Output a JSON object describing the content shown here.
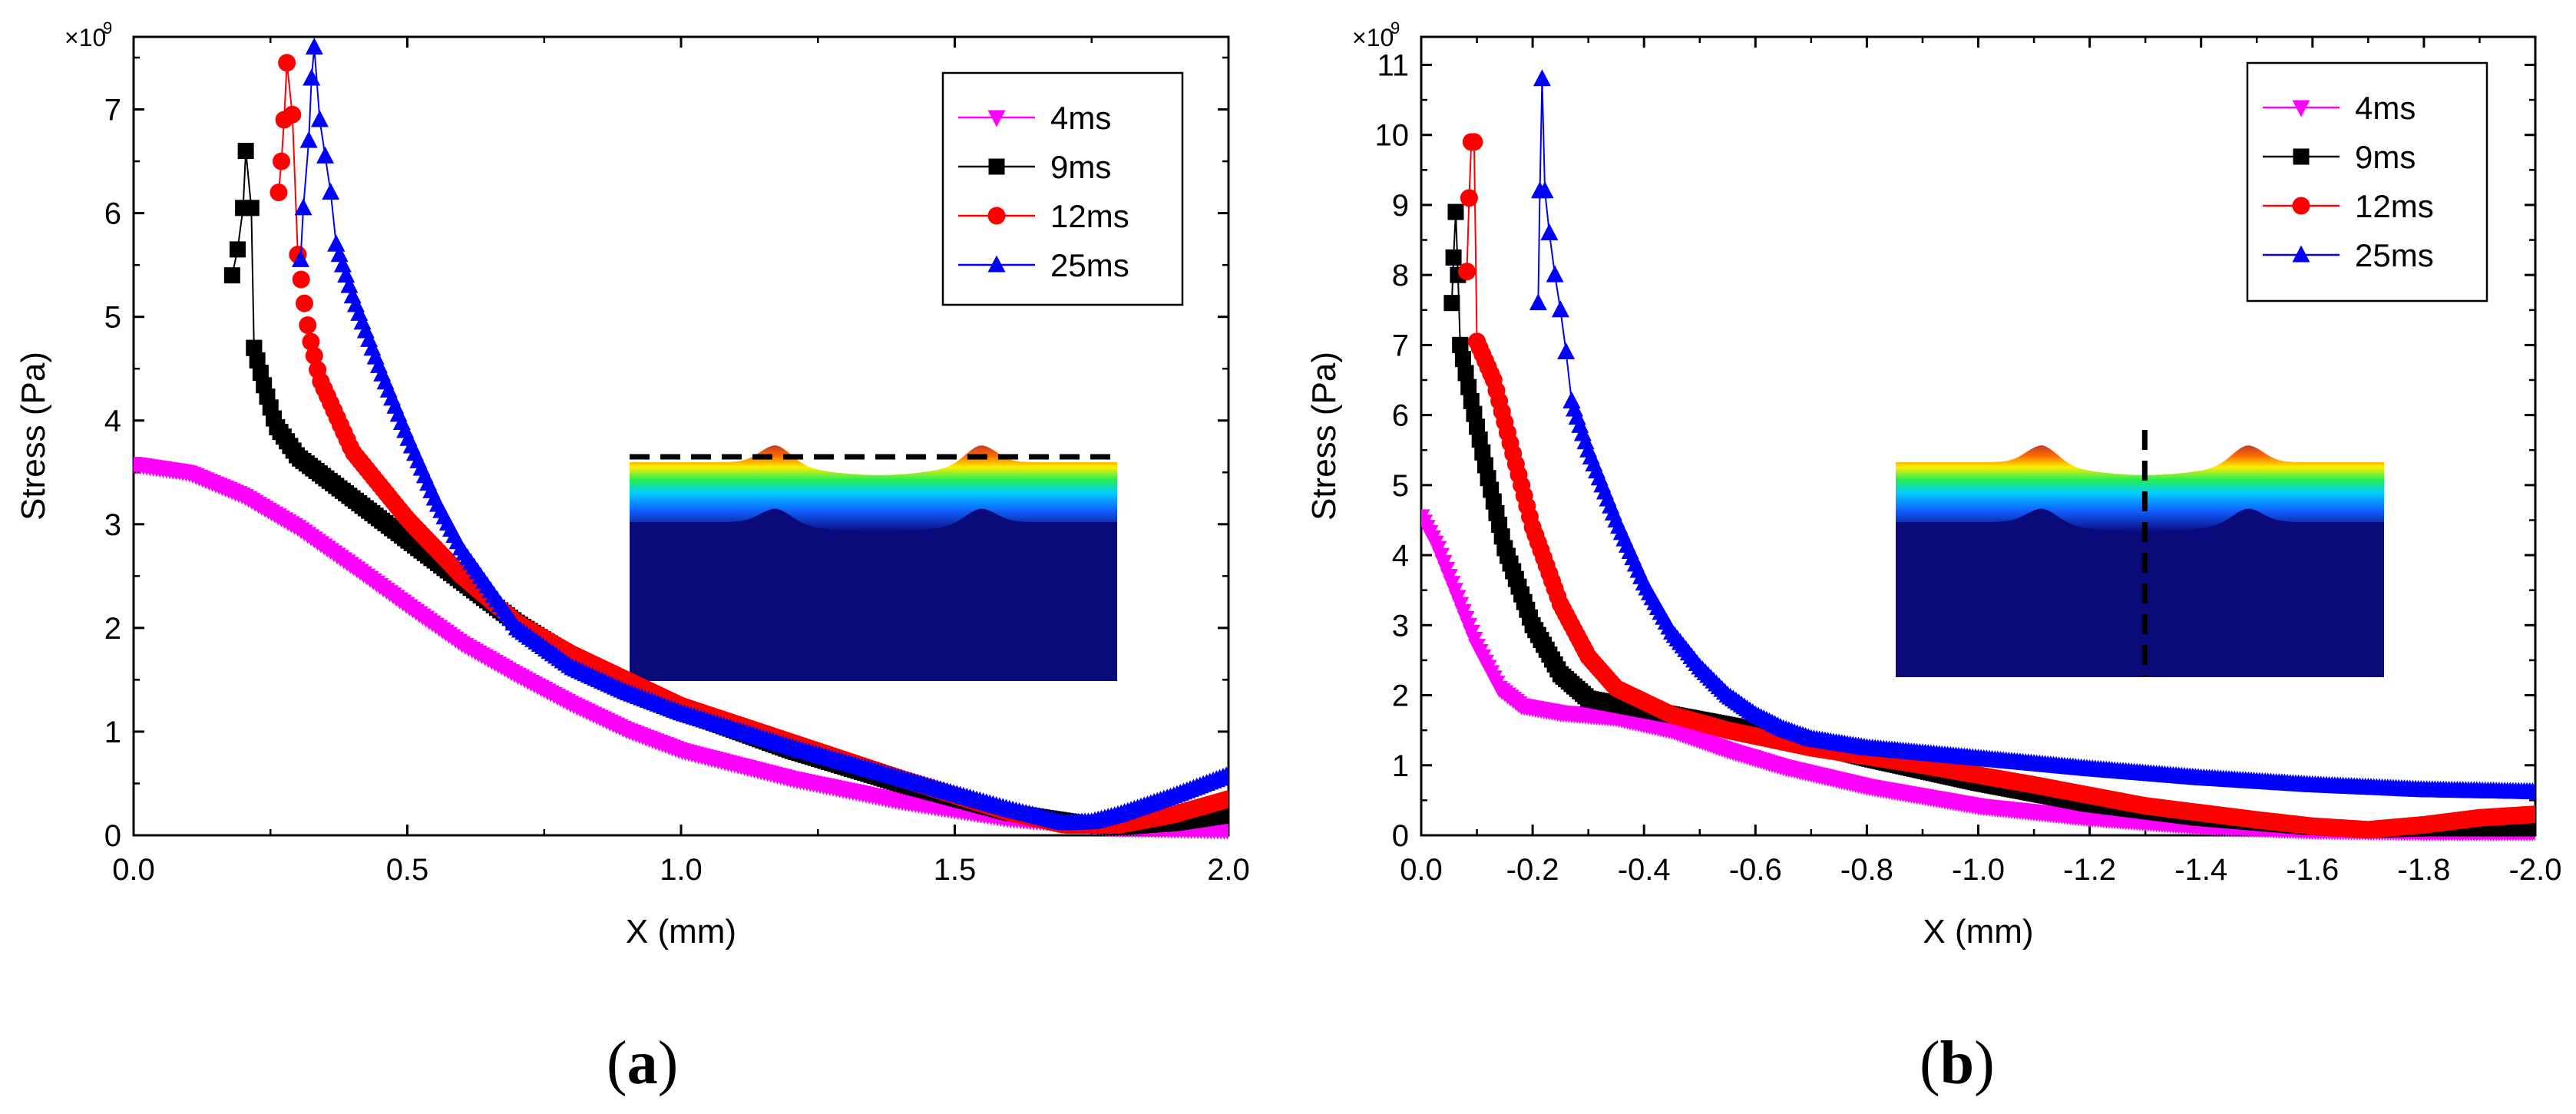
{
  "panel_labels": {
    "a_open": "(",
    "a_letter": "a",
    "a_close": ")",
    "b_open": "(",
    "b_letter": "b",
    "b_close": ")"
  },
  "colors": {
    "4ms": "#ff00ff",
    "9ms": "#000000",
    "12ms": "#ff0000",
    "25ms": "#0000ff"
  },
  "chart_data": [
    {
      "id": "a",
      "type": "scatter",
      "title": "",
      "xlabel": "X (mm)",
      "ylabel": "Stress (Pa)",
      "multiplier_label": "×10",
      "multiplier_exp": "9",
      "xlim": [
        0,
        2.0
      ],
      "ylim": [
        0,
        7.7
      ],
      "xticks": [
        0,
        0.5,
        1.0,
        1.5,
        2.0
      ],
      "xtick_labels": [
        "0.0",
        "0.5",
        "1.0",
        "1.5",
        "2.0"
      ],
      "yticks": [
        0,
        1,
        2,
        3,
        4,
        5,
        6,
        7
      ],
      "ytick_labels": [
        "0",
        "1",
        "2",
        "3",
        "4",
        "5",
        "6",
        "7"
      ],
      "legend_position": "top-right",
      "inset": "horizontal dashed line across surface",
      "series": [
        {
          "name": "4ms",
          "marker": "triangle-down",
          "start": 0,
          "end": 2.0,
          "denseStep": 0.006,
          "points": [
            [
              0,
              3.58
            ],
            [
              0.1,
              3.5
            ],
            [
              0.2,
              3.28
            ],
            [
              0.3,
              2.97
            ],
            [
              0.4,
              2.6
            ],
            [
              0.5,
              2.22
            ],
            [
              0.6,
              1.85
            ],
            [
              0.7,
              1.55
            ],
            [
              0.8,
              1.27
            ],
            [
              0.9,
              1.02
            ],
            [
              1.0,
              0.82
            ],
            [
              1.2,
              0.55
            ],
            [
              1.4,
              0.33
            ],
            [
              1.6,
              0.16
            ],
            [
              1.8,
              0.07
            ],
            [
              2.0,
              0.05
            ]
          ],
          "peak": []
        },
        {
          "name": "9ms",
          "marker": "square",
          "start": 0.22,
          "end": 2.0,
          "denseStep": 0.006,
          "points": [
            [
              0.22,
              4.7
            ],
            [
              0.24,
              4.3
            ],
            [
              0.26,
              3.95
            ],
            [
              0.3,
              3.65
            ],
            [
              0.35,
              3.45
            ],
            [
              0.4,
              3.25
            ],
            [
              0.5,
              2.85
            ],
            [
              0.6,
              2.45
            ],
            [
              0.7,
              2.05
            ],
            [
              0.8,
              1.72
            ],
            [
              0.9,
              1.45
            ],
            [
              1.0,
              1.2
            ],
            [
              1.2,
              0.82
            ],
            [
              1.4,
              0.5
            ],
            [
              1.6,
              0.22
            ],
            [
              1.75,
              0.1
            ],
            [
              1.8,
              0.08
            ],
            [
              1.9,
              0.12
            ],
            [
              2.0,
              0.2
            ]
          ],
          "peak": [
            [
              0.18,
              5.4
            ],
            [
              0.19,
              5.65
            ],
            [
              0.2,
              6.05
            ],
            [
              0.205,
              6.6
            ],
            [
              0.215,
              6.05
            ],
            [
              0.22,
              4.7
            ]
          ]
        },
        {
          "name": "12ms",
          "marker": "circle",
          "start": 0.3,
          "end": 2.0,
          "denseStep": 0.006,
          "points": [
            [
              0.3,
              5.6
            ],
            [
              0.31,
              5.2
            ],
            [
              0.32,
              4.85
            ],
            [
              0.34,
              4.4
            ],
            [
              0.37,
              4.05
            ],
            [
              0.4,
              3.7
            ],
            [
              0.5,
              3.05
            ],
            [
              0.6,
              2.5
            ],
            [
              0.7,
              2.05
            ],
            [
              0.8,
              1.75
            ],
            [
              0.9,
              1.5
            ],
            [
              1.0,
              1.25
            ],
            [
              1.2,
              0.9
            ],
            [
              1.4,
              0.55
            ],
            [
              1.6,
              0.22
            ],
            [
              1.7,
              0.1
            ],
            [
              1.8,
              0.1
            ],
            [
              1.9,
              0.2
            ],
            [
              2.0,
              0.35
            ]
          ],
          "peak": [
            [
              0.265,
              6.2
            ],
            [
              0.27,
              6.5
            ],
            [
              0.275,
              6.9
            ],
            [
              0.28,
              7.45
            ],
            [
              0.29,
              6.95
            ],
            [
              0.3,
              5.6
            ]
          ]
        },
        {
          "name": "25ms",
          "marker": "triangle-up",
          "start": 0.37,
          "end": 2.0,
          "denseStep": 0.006,
          "points": [
            [
              0.37,
              5.7
            ],
            [
              0.4,
              5.2
            ],
            [
              0.45,
              4.5
            ],
            [
              0.5,
              3.85
            ],
            [
              0.55,
              3.25
            ],
            [
              0.6,
              2.75
            ],
            [
              0.7,
              2.0
            ],
            [
              0.8,
              1.62
            ],
            [
              0.9,
              1.38
            ],
            [
              1.0,
              1.18
            ],
            [
              1.2,
              0.85
            ],
            [
              1.4,
              0.55
            ],
            [
              1.6,
              0.25
            ],
            [
              1.7,
              0.12
            ],
            [
              1.75,
              0.13
            ],
            [
              1.8,
              0.2
            ],
            [
              1.9,
              0.38
            ],
            [
              2.0,
              0.58
            ]
          ],
          "peak": [
            [
              0.305,
              5.55
            ],
            [
              0.31,
              6.05
            ],
            [
              0.32,
              6.7
            ],
            [
              0.325,
              7.3
            ],
            [
              0.33,
              7.6
            ],
            [
              0.34,
              6.9
            ],
            [
              0.35,
              6.55
            ],
            [
              0.36,
              6.2
            ],
            [
              0.37,
              5.7
            ]
          ]
        }
      ]
    },
    {
      "id": "b",
      "type": "scatter",
      "title": "",
      "xlabel": "X (mm)",
      "ylabel": "Stress (Pa)",
      "multiplier_label": "×10",
      "multiplier_exp": "9",
      "xlim": [
        0,
        2.0
      ],
      "ylim": [
        0,
        11.4
      ],
      "xticks": [
        0,
        0.2,
        0.4,
        0.6,
        0.8,
        1.0,
        1.2,
        1.4,
        1.6,
        1.8,
        2.0
      ],
      "xtick_labels": [
        "0.0",
        "-0.2",
        "-0.4",
        "-0.6",
        "-0.8",
        "-1.0",
        "-1.2",
        "-1.4",
        "-1.6",
        "-1.8",
        "-2.0"
      ],
      "yticks": [
        0,
        1,
        2,
        3,
        4,
        5,
        6,
        7,
        8,
        9,
        10,
        11
      ],
      "ytick_labels": [
        "0",
        "1",
        "2",
        "3",
        "4",
        "5",
        "6",
        "7",
        "8",
        "9",
        "10",
        "11"
      ],
      "legend_position": "top-right",
      "inset": "vertical dashed line through trough",
      "series": [
        {
          "name": "4ms",
          "marker": "triangle-down",
          "start": 0,
          "end": 2.0,
          "denseStep": 0.005,
          "points": [
            [
              0,
              4.55
            ],
            [
              0.03,
              4.1
            ],
            [
              0.06,
              3.5
            ],
            [
              0.1,
              2.7
            ],
            [
              0.14,
              2.1
            ],
            [
              0.18,
              1.85
            ],
            [
              0.25,
              1.75
            ],
            [
              0.35,
              1.68
            ],
            [
              0.45,
              1.5
            ],
            [
              0.55,
              1.22
            ],
            [
              0.65,
              0.98
            ],
            [
              0.8,
              0.7
            ],
            [
              1.0,
              0.42
            ],
            [
              1.2,
              0.25
            ],
            [
              1.4,
              0.13
            ],
            [
              1.6,
              0.07
            ],
            [
              1.8,
              0.05
            ],
            [
              2.0,
              0.05
            ]
          ],
          "peak": []
        },
        {
          "name": "9ms",
          "marker": "square",
          "start": 0.07,
          "end": 2.0,
          "denseStep": 0.005,
          "points": [
            [
              0.07,
              7.0
            ],
            [
              0.09,
              6.2
            ],
            [
              0.12,
              5.1
            ],
            [
              0.15,
              4.1
            ],
            [
              0.2,
              3.0
            ],
            [
              0.25,
              2.3
            ],
            [
              0.3,
              1.95
            ],
            [
              0.4,
              1.8
            ],
            [
              0.5,
              1.65
            ],
            [
              0.6,
              1.5
            ],
            [
              0.7,
              1.3
            ],
            [
              0.8,
              1.1
            ],
            [
              1.0,
              0.75
            ],
            [
              1.2,
              0.45
            ],
            [
              1.4,
              0.25
            ],
            [
              1.6,
              0.12
            ],
            [
              1.7,
              0.08
            ],
            [
              1.8,
              0.1
            ],
            [
              2.0,
              0.1
            ]
          ],
          "peak": [
            [
              0.055,
              7.6
            ],
            [
              0.058,
              8.25
            ],
            [
              0.062,
              8.9
            ],
            [
              0.066,
              8.0
            ],
            [
              0.07,
              7.0
            ]
          ]
        },
        {
          "name": "12ms",
          "marker": "circle",
          "start": 0.1,
          "end": 2.0,
          "denseStep": 0.005,
          "points": [
            [
              0.1,
              7.05
            ],
            [
              0.13,
              6.5
            ],
            [
              0.16,
              5.6
            ],
            [
              0.2,
              4.4
            ],
            [
              0.25,
              3.3
            ],
            [
              0.3,
              2.55
            ],
            [
              0.35,
              2.1
            ],
            [
              0.45,
              1.72
            ],
            [
              0.55,
              1.5
            ],
            [
              0.7,
              1.25
            ],
            [
              0.9,
              1.0
            ],
            [
              1.1,
              0.72
            ],
            [
              1.3,
              0.42
            ],
            [
              1.5,
              0.22
            ],
            [
              1.6,
              0.13
            ],
            [
              1.7,
              0.08
            ],
            [
              1.8,
              0.15
            ],
            [
              1.9,
              0.25
            ],
            [
              2.0,
              0.3
            ]
          ],
          "peak": [
            [
              0.082,
              8.05
            ],
            [
              0.086,
              9.1
            ],
            [
              0.09,
              9.9
            ],
            [
              0.095,
              9.9
            ],
            [
              0.1,
              7.05
            ]
          ]
        },
        {
          "name": "25ms",
          "marker": "triangle-up",
          "start": 0.27,
          "end": 2.0,
          "denseStep": 0.005,
          "points": [
            [
              0.27,
              6.2
            ],
            [
              0.3,
              5.5
            ],
            [
              0.35,
              4.5
            ],
            [
              0.4,
              3.6
            ],
            [
              0.45,
              2.9
            ],
            [
              0.5,
              2.4
            ],
            [
              0.55,
              2.0
            ],
            [
              0.6,
              1.72
            ],
            [
              0.65,
              1.52
            ],
            [
              0.7,
              1.38
            ],
            [
              0.8,
              1.25
            ],
            [
              1.0,
              1.1
            ],
            [
              1.2,
              0.95
            ],
            [
              1.4,
              0.82
            ],
            [
              1.6,
              0.72
            ],
            [
              1.8,
              0.65
            ],
            [
              2.0,
              0.62
            ]
          ],
          "peak": [
            [
              0.21,
              7.6
            ],
            [
              0.213,
              9.2
            ],
            [
              0.217,
              10.8
            ],
            [
              0.222,
              9.2
            ],
            [
              0.23,
              8.6
            ],
            [
              0.24,
              8.0
            ],
            [
              0.25,
              7.5
            ],
            [
              0.26,
              6.9
            ],
            [
              0.27,
              6.2
            ]
          ]
        }
      ]
    }
  ]
}
